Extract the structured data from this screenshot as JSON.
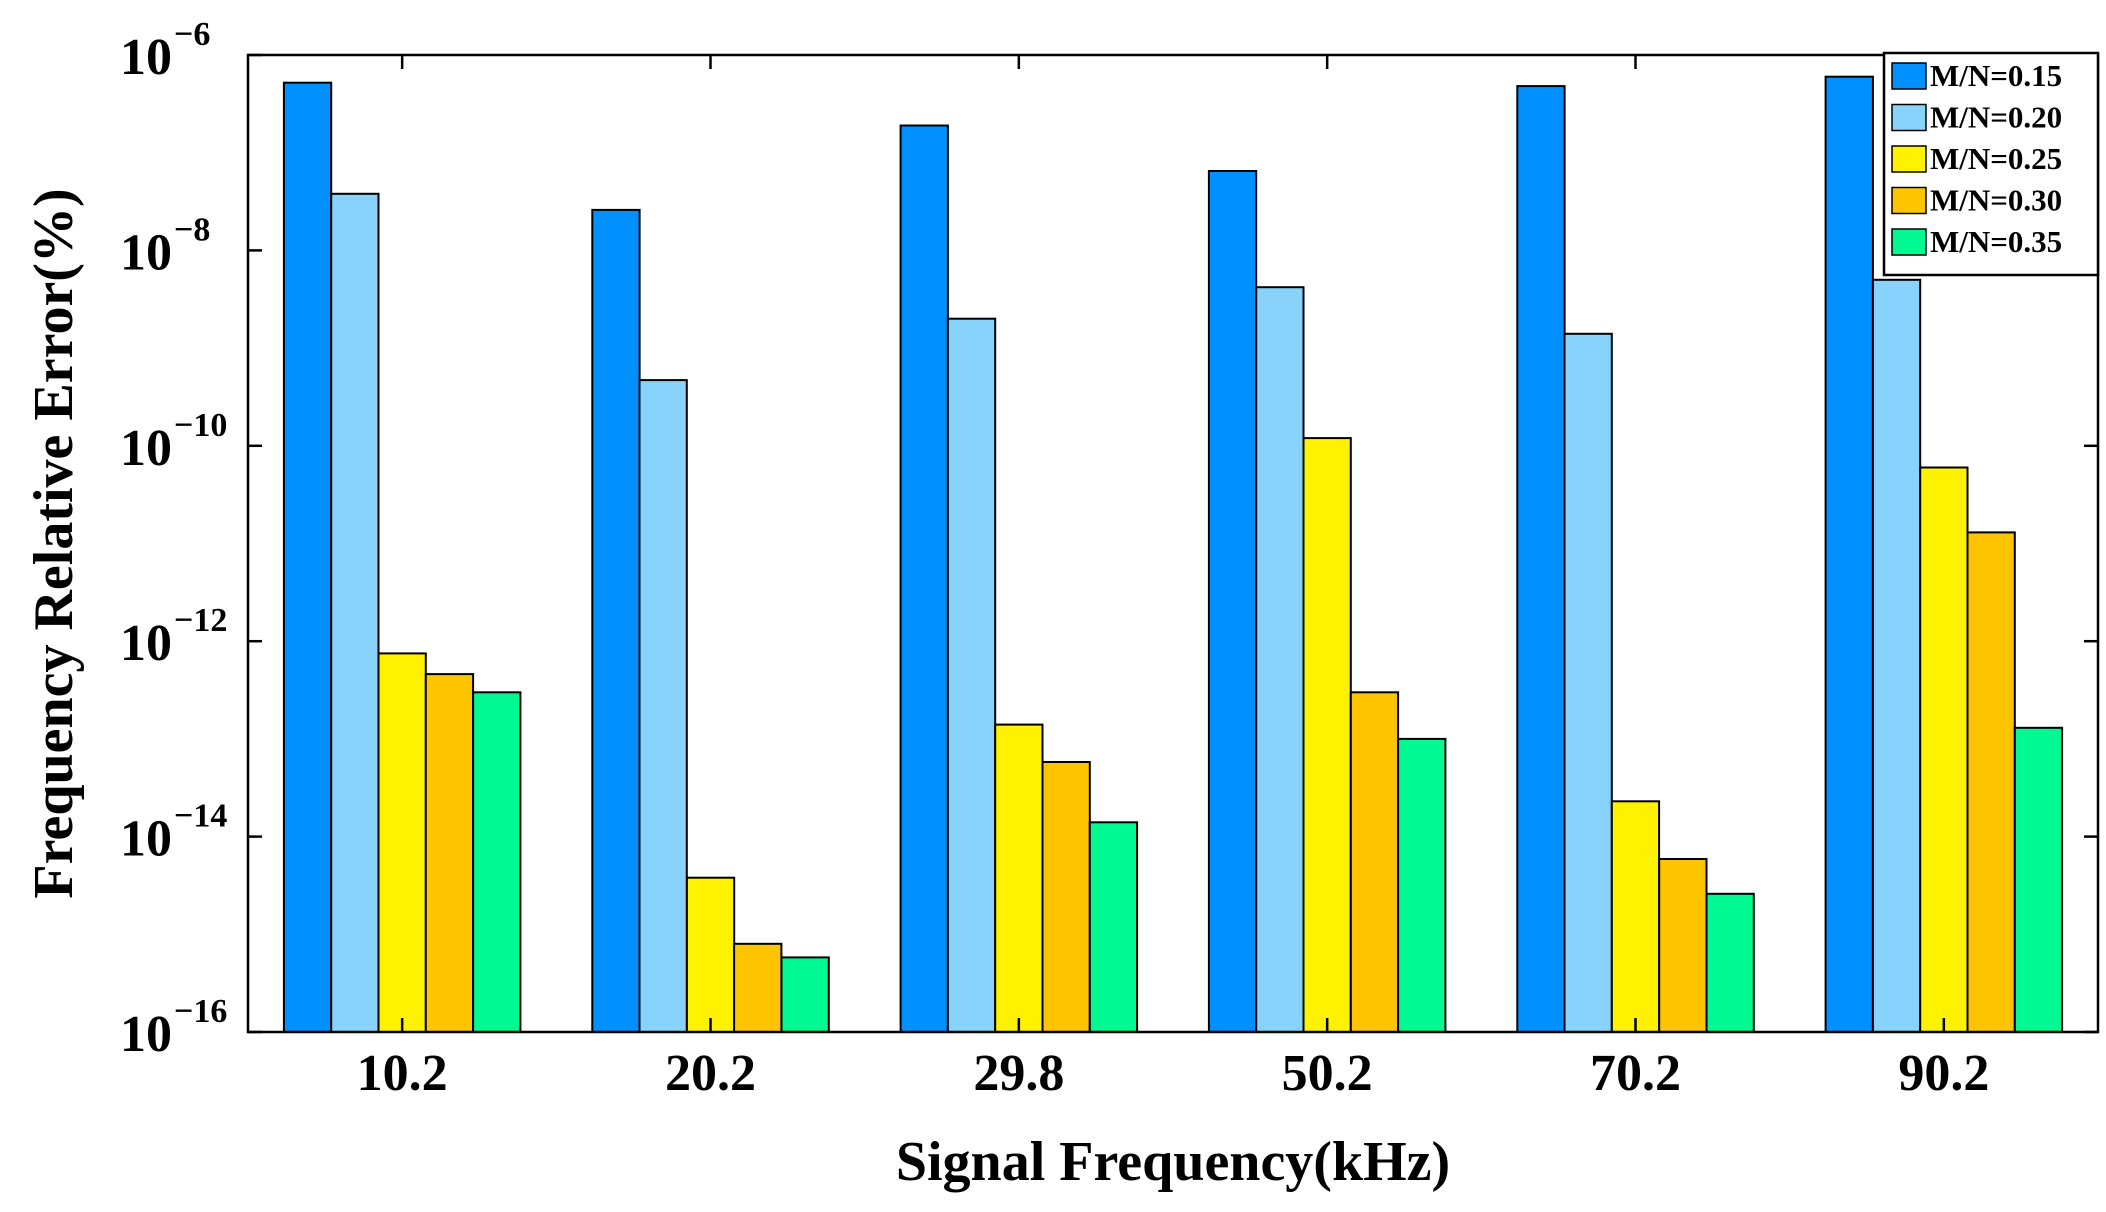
{
  "chart_data": {
    "type": "bar",
    "scale": "log",
    "title": "",
    "xlabel": "Signal Frequency(kHz)",
    "ylabel": "Frequency Relative Error(%)",
    "categories": [
      "10.2",
      "20.2",
      "29.8",
      "50.2",
      "70.2",
      "90.2"
    ],
    "ylim": [
      1e-16,
      1e-06
    ],
    "yticks": [
      {
        "base": "10",
        "exp": "−6",
        "value": 1e-06
      },
      {
        "base": "10",
        "exp": "−8",
        "value": 1e-08
      },
      {
        "base": "10",
        "exp": "−10",
        "value": 1e-10
      },
      {
        "base": "10",
        "exp": "−12",
        "value": 1e-12
      },
      {
        "base": "10",
        "exp": "−14",
        "value": 1e-14
      },
      {
        "base": "10",
        "exp": "−16",
        "value": 1e-16
      }
    ],
    "legend_position": "top-right",
    "series": [
      {
        "name": "M/N=0.15",
        "color": "#0090FF",
        "values": [
          5.2e-07,
          2.6e-08,
          1.9e-07,
          6.5e-08,
          4.8e-07,
          6e-07
        ]
      },
      {
        "name": "M/N=0.20",
        "color": "#87D3FB",
        "values": [
          3.8e-08,
          4.7e-10,
          2e-09,
          4.2e-09,
          1.4e-09,
          5e-09
        ]
      },
      {
        "name": "M/N=0.25",
        "color": "#FFF200",
        "values": [
          7.5e-13,
          3.8e-15,
          1.4e-13,
          1.2e-10,
          2.3e-14,
          6e-11
        ]
      },
      {
        "name": "M/N=0.30",
        "color": "#FFC400",
        "values": [
          4.6e-13,
          8e-16,
          5.8e-14,
          3e-13,
          5.9e-15,
          1.3e-11
        ]
      },
      {
        "name": "M/N=0.35",
        "color": "#00FA91",
        "values": [
          3e-13,
          5.8e-16,
          1.4e-14,
          1e-13,
          2.6e-15,
          1.3e-13
        ]
      }
    ]
  }
}
